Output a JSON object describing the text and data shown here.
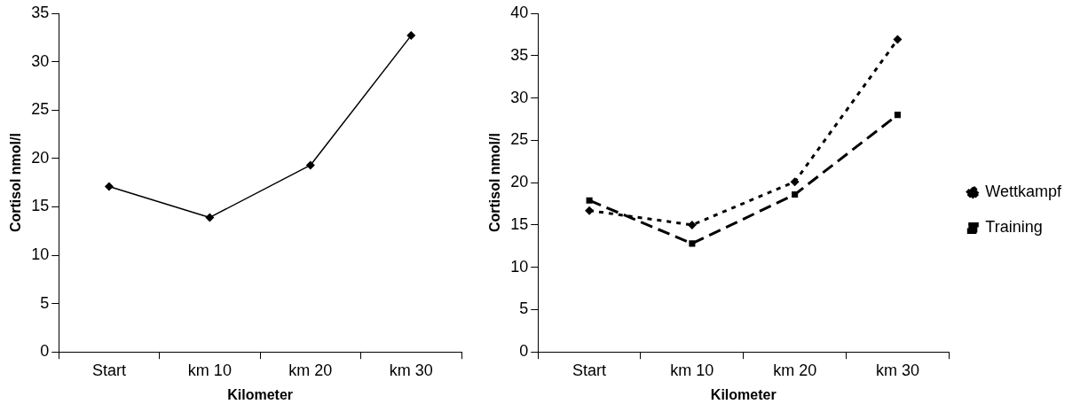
{
  "chart_data": [
    {
      "type": "line",
      "xlabel": "Kilometer",
      "ylabel": "Cortisol nmol/l",
      "categories": [
        "Start",
        "km 10",
        "km 20",
        "km 30"
      ],
      "series": [
        {
          "color": "#000000",
          "values": [
            17.1,
            13.9,
            19.3,
            32.7
          ]
        }
      ],
      "ylim": [
        0,
        35
      ],
      "yticks": [
        0,
        5,
        10,
        15,
        20,
        25,
        30,
        35
      ],
      "grid": false,
      "legend": false,
      "marker": "diamond",
      "line_style": "solid"
    },
    {
      "type": "line",
      "xlabel": "Kilometer",
      "ylabel": "Cortisol nmol/l",
      "categories": [
        "Start",
        "km 10",
        "km 20",
        "km 30"
      ],
      "series": [
        {
          "name": "Wettkampf",
          "color": "#000000",
          "values": [
            16.7,
            15.0,
            20.1,
            36.9
          ],
          "marker": "diamond",
          "line_style": "dotted"
        },
        {
          "name": "Training",
          "color": "#000000",
          "values": [
            17.9,
            12.8,
            18.6,
            28.0
          ],
          "marker": "square",
          "line_style": "dashed"
        }
      ],
      "ylim": [
        0,
        40
      ],
      "yticks": [
        0,
        5,
        10,
        15,
        20,
        25,
        30,
        35,
        40
      ],
      "grid": false,
      "legend": "right"
    }
  ]
}
